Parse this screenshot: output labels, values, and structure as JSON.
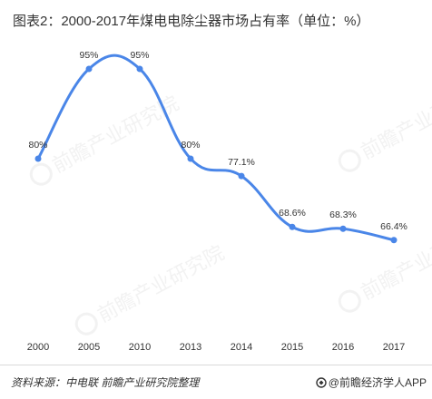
{
  "title": "图表2：2000-2017年煤电电除尘器市场占有率（单位：%）",
  "source": "资料来源：中电联 前瞻产业研究院整理",
  "brand": "@前瞻经济学人APP",
  "watermark": "前瞻产业研究院",
  "colors": {
    "line": "#4a86e8",
    "text": "#333333"
  },
  "chart_data": {
    "type": "line",
    "title": "图表2：2000-2017年煤电电除尘器市场占有率（单位：%）",
    "categories": [
      "2000",
      "2005",
      "2010",
      "2013",
      "2014",
      "2015",
      "2016",
      "2017"
    ],
    "series": [
      {
        "values": [
          80,
          95,
          95,
          80,
          77.1,
          68.6,
          68.3,
          66.4
        ],
        "labels": [
          "80%",
          "95%",
          "95%",
          "80%",
          "77.1%",
          "68.6%",
          "68.3%",
          "66.4%"
        ]
      }
    ],
    "ylim": [
      50,
      100
    ],
    "grid": false,
    "smooth": true,
    "legend": "none"
  }
}
